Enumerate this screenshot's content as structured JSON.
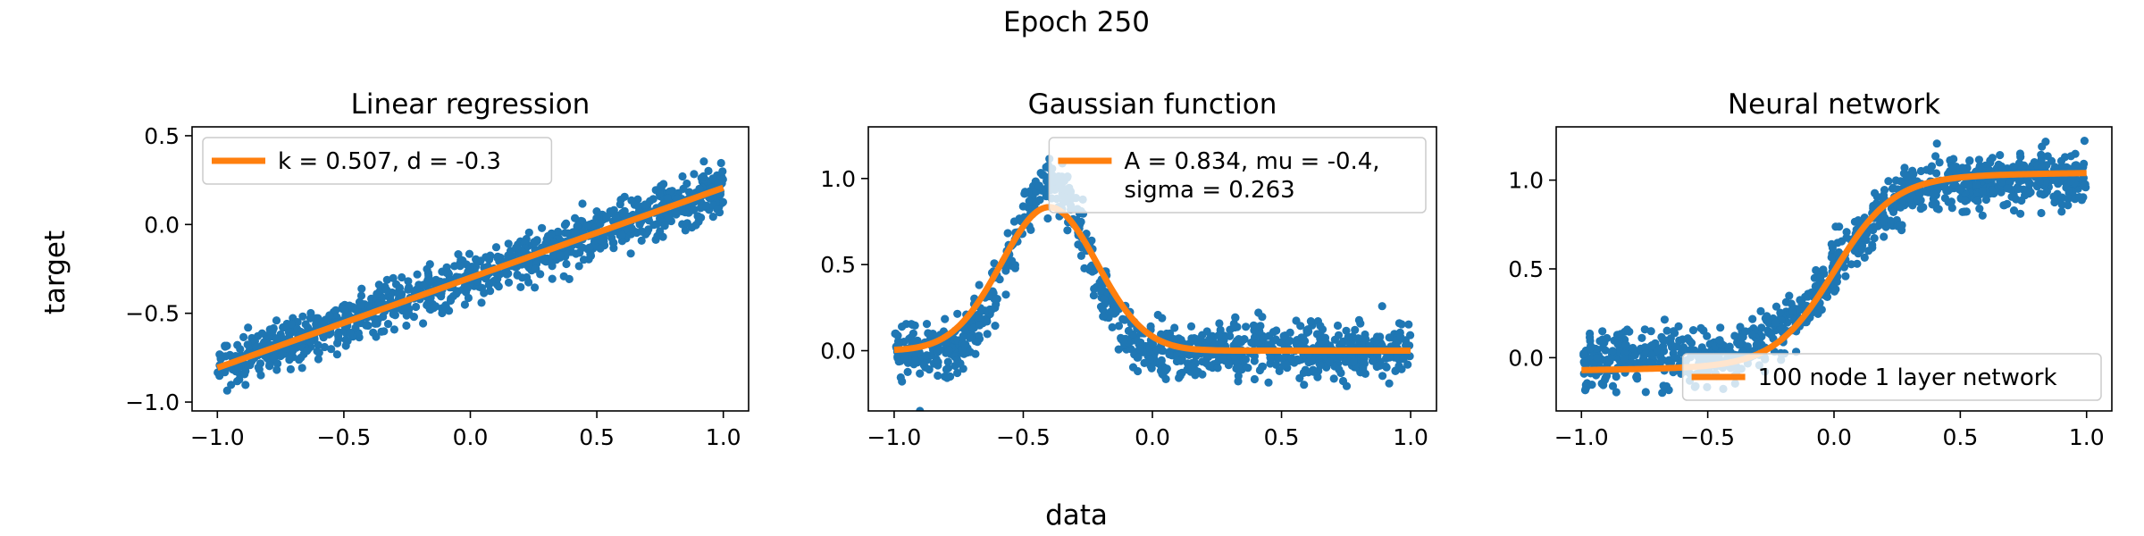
{
  "figure": {
    "suptitle": "Epoch 250",
    "xlabel": "data",
    "ylabel": "target"
  },
  "colors": {
    "points": "#1f77b4",
    "fit": "#ff7f0e",
    "legend_border": "#cccccc"
  },
  "chart_data": [
    {
      "type": "scatter",
      "title": "Linear regression",
      "xlim": [
        -1.1,
        1.1
      ],
      "ylim": [
        -1.05,
        0.55
      ],
      "xticks": [
        {
          "value": -1.0,
          "label": "−1.0"
        },
        {
          "value": -0.5,
          "label": "−0.5"
        },
        {
          "value": 0.0,
          "label": "0.0"
        },
        {
          "value": 0.5,
          "label": "0.5"
        },
        {
          "value": 1.0,
          "label": "1.0"
        }
      ],
      "yticks": [
        {
          "value": -1.0,
          "label": "−1.0"
        },
        {
          "value": -0.5,
          "label": "−0.5"
        },
        {
          "value": 0.0,
          "label": "0.0"
        },
        {
          "value": 0.5,
          "label": "0.5"
        }
      ],
      "legend": {
        "position": "upper left",
        "lines": [
          "k = 0.507, d = -0.3"
        ]
      },
      "fit": {
        "kind": "linear",
        "k": 0.507,
        "d": -0.3
      },
      "scatter": {
        "n": 1000,
        "noise": 0.07,
        "x_range": [
          -1.0,
          1.0
        ]
      },
      "grid": false
    },
    {
      "type": "scatter",
      "title": "Gaussian function",
      "xlim": [
        -1.1,
        1.1
      ],
      "ylim": [
        -0.35,
        1.3
      ],
      "xticks": [
        {
          "value": -1.0,
          "label": "−1.0"
        },
        {
          "value": -0.5,
          "label": "−0.5"
        },
        {
          "value": 0.0,
          "label": "0.0"
        },
        {
          "value": 0.5,
          "label": "0.5"
        },
        {
          "value": 1.0,
          "label": "1.0"
        }
      ],
      "yticks": [
        {
          "value": 0.0,
          "label": "0.0"
        },
        {
          "value": 0.5,
          "label": "0.5"
        },
        {
          "value": 1.0,
          "label": "1.0"
        }
      ],
      "legend": {
        "position": "upper right",
        "lines": [
          "A = 0.834, mu = -0.4,",
          "sigma = 0.263"
        ]
      },
      "fit": {
        "kind": "gaussian",
        "A": 0.834,
        "mu": -0.4,
        "sigma": 0.263
      },
      "scatter": {
        "n": 1000,
        "noise": 0.08,
        "x_range": [
          -1.0,
          1.0
        ]
      },
      "grid": false
    },
    {
      "type": "scatter",
      "title": "Neural network",
      "xlim": [
        -1.1,
        1.1
      ],
      "ylim": [
        -0.3,
        1.3
      ],
      "xticks": [
        {
          "value": -1.0,
          "label": "−1.0"
        },
        {
          "value": -0.5,
          "label": "−0.5"
        },
        {
          "value": 0.0,
          "label": "0.0"
        },
        {
          "value": 0.5,
          "label": "0.5"
        },
        {
          "value": 1.0,
          "label": "1.0"
        }
      ],
      "yticks": [
        {
          "value": 0.0,
          "label": "0.0"
        },
        {
          "value": 0.5,
          "label": "0.5"
        },
        {
          "value": 1.0,
          "label": "1.0"
        }
      ],
      "legend": {
        "position": "lower right",
        "lines": [
          "100 node 1 layer network"
        ]
      },
      "fit": {
        "kind": "sigmoid"
      },
      "scatter": {
        "n": 1000,
        "noise": 0.08,
        "x_range": [
          -1.0,
          1.0
        ]
      },
      "grid": false
    }
  ]
}
